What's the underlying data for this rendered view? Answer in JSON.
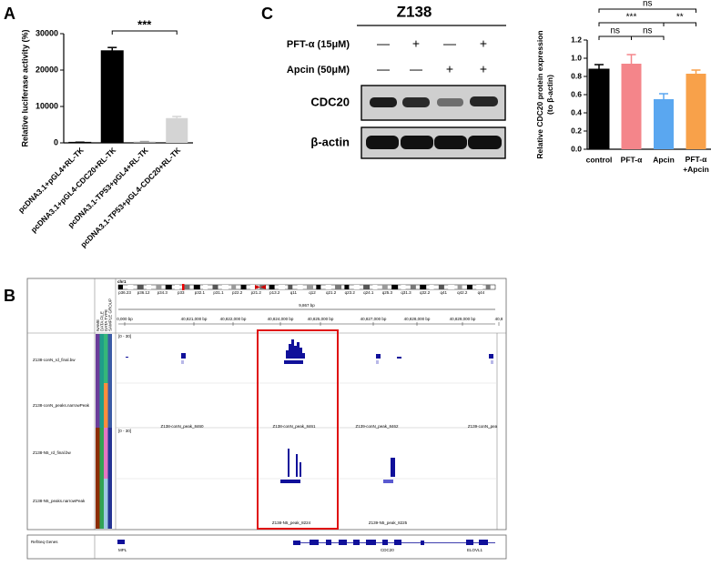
{
  "panel_labels": [
    "A",
    "B",
    "C"
  ],
  "chart_data": [
    {
      "type": "bar",
      "ylabel": "Relative luciferase activity (%)",
      "categories": [
        "pcDNA3.1+pGL4+RL-TK",
        "pcDNA3.1+pGL4-CDC20+RL-TK",
        "pcDNA3.1-TP53+pGL4+RL-TK",
        "pcDNA3.1-TP53+pGL4-CDC20+RL-TK"
      ],
      "values": [
        150,
        25300,
        300,
        6800
      ],
      "errors": [
        40,
        900,
        60,
        450
      ],
      "colors": [
        "#000000",
        "#000000",
        "#9e9e9e",
        "#d4d4d4"
      ],
      "ylim": [
        0,
        30000
      ],
      "yticks": [
        0,
        10000,
        20000,
        30000
      ],
      "significance": [
        {
          "from": 1,
          "to": 3,
          "label": "***"
        }
      ]
    },
    {
      "type": "bar",
      "ylabel": [
        "Relative CDC20 protein expression",
        "(to β-actin)"
      ],
      "categories": [
        "control",
        "PFT-α",
        "Apcin",
        "PFT-α\n+Apcin"
      ],
      "values": [
        0.88,
        0.94,
        0.55,
        0.83
      ],
      "errors": [
        0.05,
        0.1,
        0.06,
        0.04
      ],
      "colors": [
        "#000000",
        "#f4858a",
        "#5aa7f0",
        "#f8a14a"
      ],
      "ylim": [
        0,
        1.2
      ],
      "yticks": [
        {
          "value": 0,
          "label": "0.0"
        },
        {
          "value": 0.2,
          "label": "0.2"
        },
        {
          "value": 0.4,
          "label": "0.4"
        },
        {
          "value": 0.6,
          "label": "0.6"
        },
        {
          "value": 0.8,
          "label": "0.8"
        },
        {
          "value": 1,
          "label": "1.0"
        },
        {
          "value": 1.2,
          "label": "1.2"
        }
      ],
      "significance": [
        {
          "from": 0,
          "to": 3,
          "label": "ns"
        },
        {
          "from": 0,
          "to": 2,
          "label": "***"
        },
        {
          "from": 2,
          "to": 3,
          "label": "**"
        },
        {
          "from": 0,
          "to": 1,
          "label": "ns"
        },
        {
          "from": 1,
          "to": 2,
          "label": "ns"
        }
      ]
    }
  ],
  "western_blot": {
    "title": "Z138",
    "treatments": [
      {
        "label": "PFT-α (15μM)",
        "signs": [
          "—",
          "+",
          "—",
          "+"
        ]
      },
      {
        "label": "Apcin (50μM)",
        "signs": [
          "—",
          "—",
          "+",
          "+"
        ]
      }
    ],
    "proteins": [
      "CDC20",
      "β-actin"
    ]
  },
  "genome_browser": {
    "chromosome": "chr1",
    "cytobands": [
      "p36.23",
      "p36.12",
      "p34.3",
      "p33",
      "p32.1",
      "p31.1",
      "p22.2",
      "p21.2",
      "p13.2",
      "q11",
      "q12",
      "q21.2",
      "q23.2",
      "q24.1",
      "q25.3",
      "q31.3",
      "q32.2",
      "q41",
      "q42.2",
      "q44"
    ],
    "span": "9,867 bp",
    "positions": [
      "0,000 bp",
      "40,821,000 bp",
      "40,822,000 bp",
      "40,824,000 bp",
      "40,825,000 bp",
      "40,827,000 bp",
      "40,828,000 bp",
      "40,829,000 bp",
      "40,8"
    ],
    "attributes": [
      "NAME",
      "DATA FILE",
      "DATA TYPE",
      "SAMPLE GROUP"
    ],
    "tracks": [
      "Z138-conN_rd_final.bw",
      "Z138-conN_peaks.narrowPeak",
      "Z138-N5_rd_final.bw",
      "Z138-N5_peaks.narrowPeak"
    ],
    "scales": [
      "[0 - 30]",
      "[0 - 30]"
    ],
    "peaks_conN": [
      "Z138-conN_peak_8460",
      "Z138-conN_peak_8461",
      "Z139-conN_peak_8462",
      "Z139-conN_pea"
    ],
    "peaks_N5": [
      "Z138-N5_peak_8224",
      "Z139-N5_peak_8225"
    ],
    "gene_track": "RefSeq Genes",
    "genes": [
      "MPL",
      "CDC20",
      "ELOVL1"
    ]
  }
}
